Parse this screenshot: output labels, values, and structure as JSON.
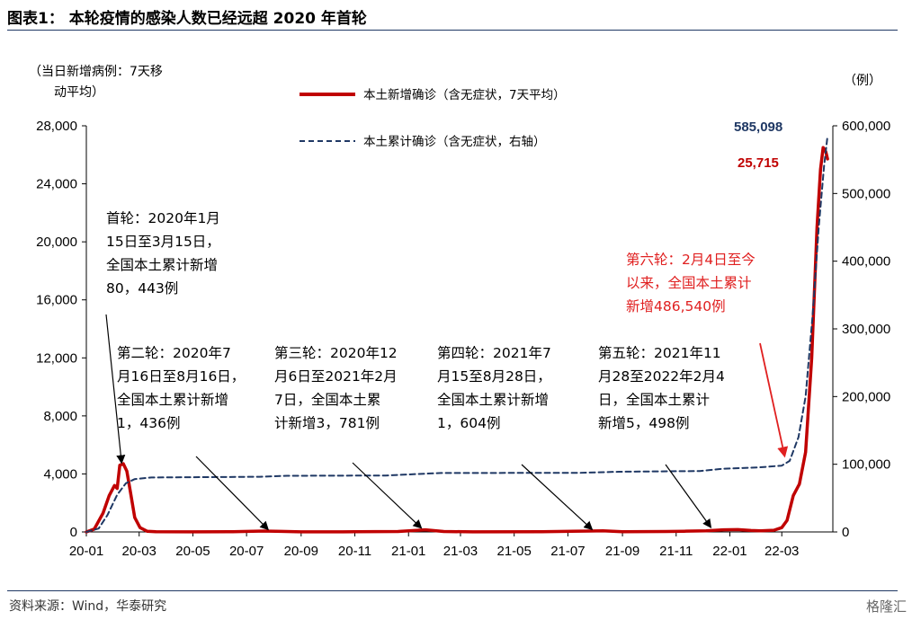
{
  "figure": {
    "title": "图表1：  本轮疫情的感染人数已经远超 2020 年首轮",
    "source": "资料来源：Wind，华泰研究",
    "logo_text": "格隆汇"
  },
  "chart_data": {
    "type": "line",
    "left_axis": {
      "unit_label": [
        "（当日新增病例：7天移",
        "动平均）"
      ],
      "range": [
        0,
        28000
      ],
      "ticks": [
        "0",
        "4,000",
        "8,000",
        "12,000",
        "16,000",
        "20,000",
        "24,000",
        "28,000"
      ],
      "tick_values": [
        0,
        4000,
        8000,
        12000,
        16000,
        20000,
        24000,
        28000
      ]
    },
    "right_axis": {
      "unit_label": "（例）",
      "range": [
        0,
        600000
      ],
      "ticks": [
        "0",
        "100,000",
        "200,000",
        "300,000",
        "400,000",
        "500,000",
        "600,000"
      ],
      "tick_values": [
        0,
        100000,
        200000,
        300000,
        400000,
        500000,
        600000
      ]
    },
    "x_axis": {
      "ticks": [
        "20-01",
        "20-03",
        "20-05",
        "20-07",
        "20-09",
        "20-11",
        "21-01",
        "21-03",
        "21-05",
        "21-07",
        "21-09",
        "21-11",
        "22-01",
        "22-03"
      ],
      "tick_dates": [
        "2020-01-01",
        "2020-03-01",
        "2020-05-01",
        "2020-07-01",
        "2020-09-01",
        "2020-11-01",
        "2021-01-01",
        "2021-03-01",
        "2021-05-01",
        "2021-07-01",
        "2021-09-01",
        "2021-11-01",
        "2022-01-01",
        "2022-03-01"
      ],
      "range": [
        "2020-01-01",
        "2022-04-28"
      ]
    },
    "legend_placement": "top-center",
    "grid": false,
    "series": [
      {
        "name": "本土新增确诊（含无症状，7天平均）",
        "axis": "left",
        "color": "#c00000",
        "style": "solid",
        "points": [
          [
            "2020-01-01",
            0
          ],
          [
            "2020-01-10",
            200
          ],
          [
            "2020-01-20",
            1300
          ],
          [
            "2020-01-27",
            2500
          ],
          [
            "2020-02-02",
            3200
          ],
          [
            "2020-02-05",
            3000
          ],
          [
            "2020-02-08",
            4600
          ],
          [
            "2020-02-12",
            4700
          ],
          [
            "2020-02-16",
            4200
          ],
          [
            "2020-02-20",
            2800
          ],
          [
            "2020-02-25",
            1000
          ],
          [
            "2020-03-02",
            300
          ],
          [
            "2020-03-10",
            50
          ],
          [
            "2020-03-20",
            10
          ],
          [
            "2020-05-01",
            5
          ],
          [
            "2020-06-15",
            15
          ],
          [
            "2020-07-20",
            60
          ],
          [
            "2020-08-10",
            40
          ],
          [
            "2020-09-01",
            5
          ],
          [
            "2020-11-01",
            10
          ],
          [
            "2020-12-20",
            30
          ],
          [
            "2021-01-10",
            110
          ],
          [
            "2021-01-20",
            150
          ],
          [
            "2021-02-10",
            30
          ],
          [
            "2021-03-15",
            5
          ],
          [
            "2021-06-01",
            15
          ],
          [
            "2021-07-25",
            60
          ],
          [
            "2021-08-10",
            80
          ],
          [
            "2021-09-01",
            15
          ],
          [
            "2021-10-20",
            30
          ],
          [
            "2021-11-10",
            50
          ],
          [
            "2021-12-05",
            80
          ],
          [
            "2021-12-25",
            150
          ],
          [
            "2022-01-10",
            160
          ],
          [
            "2022-01-25",
            100
          ],
          [
            "2022-02-05",
            80
          ],
          [
            "2022-02-20",
            120
          ],
          [
            "2022-03-01",
            300
          ],
          [
            "2022-03-07",
            800
          ],
          [
            "2022-03-14",
            2500
          ],
          [
            "2022-03-21",
            3300
          ],
          [
            "2022-03-28",
            5500
          ],
          [
            "2022-04-04",
            12000
          ],
          [
            "2022-04-10",
            21000
          ],
          [
            "2022-04-14",
            25000
          ],
          [
            "2022-04-17",
            26500
          ],
          [
            "2022-04-20",
            26200
          ],
          [
            "2022-04-22",
            25715
          ]
        ]
      },
      {
        "name": "本土累计确诊（含无症状，右轴）",
        "axis": "right",
        "color": "#1f3864",
        "style": "dashed",
        "points": [
          [
            "2020-01-01",
            0
          ],
          [
            "2020-01-15",
            5000
          ],
          [
            "2020-01-25",
            25000
          ],
          [
            "2020-02-05",
            55000
          ],
          [
            "2020-02-15",
            72000
          ],
          [
            "2020-02-25",
            78000
          ],
          [
            "2020-03-15",
            80443
          ],
          [
            "2020-07-16",
            81500
          ],
          [
            "2020-08-16",
            82900
          ],
          [
            "2020-12-06",
            83300
          ],
          [
            "2021-01-10",
            85500
          ],
          [
            "2021-02-07",
            87100
          ],
          [
            "2021-07-15",
            87300
          ],
          [
            "2021-08-28",
            88900
          ],
          [
            "2021-11-28",
            90000
          ],
          [
            "2021-12-25",
            93500
          ],
          [
            "2022-02-04",
            95500
          ],
          [
            "2022-03-01",
            98000
          ],
          [
            "2022-03-10",
            105000
          ],
          [
            "2022-03-20",
            140000
          ],
          [
            "2022-03-28",
            200000
          ],
          [
            "2022-04-05",
            320000
          ],
          [
            "2022-04-12",
            450000
          ],
          [
            "2022-04-18",
            540000
          ],
          [
            "2022-04-22",
            585098
          ]
        ]
      }
    ],
    "end_labels": {
      "cumulative": "585,098",
      "daily": "25,715"
    },
    "annotations": [
      {
        "id": "wave1",
        "color": "#000000",
        "lines": [
          "首轮：2020年1月",
          "15日至3月15日，",
          "全国本土累计新增",
          "80，443例"
        ],
        "arrow_to": [
          "2020-02-10",
          4800
        ]
      },
      {
        "id": "wave2",
        "color": "#000000",
        "lines": [
          "第二轮：2020年7",
          "月16日至8月16日，",
          "全国本土累计新增",
          "1，436例"
        ],
        "arrow_to": [
          "2020-07-25",
          200
        ]
      },
      {
        "id": "wave3",
        "color": "#000000",
        "lines": [
          "第三轮：2020年12",
          "月6日至2021年2月",
          "7日，全国本土累",
          "计新增3，781例"
        ],
        "arrow_to": [
          "2021-01-15",
          300
        ]
      },
      {
        "id": "wave4",
        "color": "#000000",
        "lines": [
          "第四轮：2021年7",
          "月15至8月28日，",
          "全国本土累计新增",
          "1，604例"
        ],
        "arrow_to": [
          "2021-07-28",
          200
        ]
      },
      {
        "id": "wave5",
        "color": "#000000",
        "lines": [
          "第五轮：2021年11",
          "月28至2022年2月4",
          "日，全国本土累计",
          "新增5，498例"
        ],
        "arrow_to": [
          "2021-12-10",
          350
        ]
      },
      {
        "id": "wave6",
        "color": "#e02020",
        "lines": [
          "第六轮：2月4日至今",
          "以来，全国本土累计",
          "新增486,540例"
        ],
        "arrow_to": [
          "2022-03-04",
          5300
        ]
      }
    ]
  }
}
